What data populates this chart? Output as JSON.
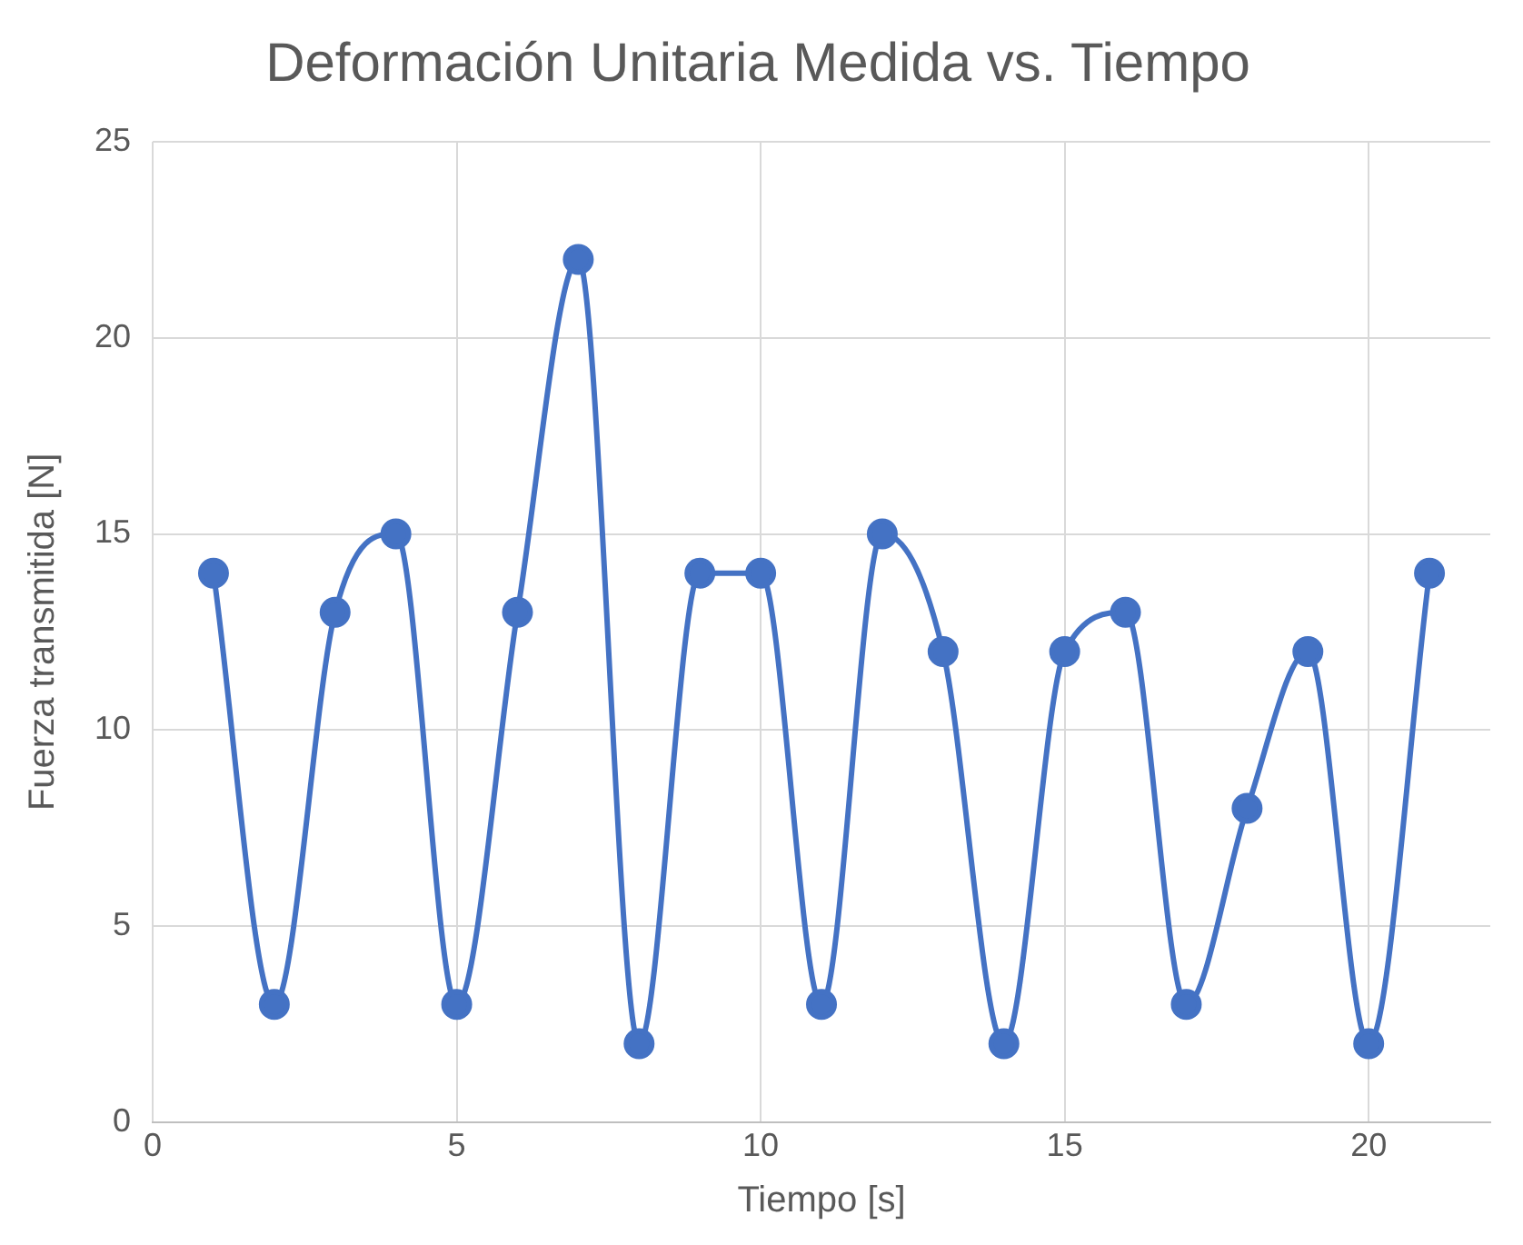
{
  "chart_data": {
    "type": "line",
    "title": "Deformación Unitaria Medida vs. Tiempo",
    "xlabel": "Tiempo [s]",
    "ylabel": "Fuerza transmitida [N]",
    "x": [
      1,
      2,
      3,
      4,
      5,
      6,
      7,
      8,
      9,
      10,
      11,
      12,
      13,
      14,
      15,
      16,
      17,
      18,
      19,
      20,
      21
    ],
    "series": [
      {
        "color": "#4472c4",
        "values": [
          14,
          3,
          13,
          15,
          3,
          13,
          22,
          2,
          14,
          14,
          3,
          15,
          12,
          2,
          12,
          13,
          3,
          8,
          12,
          2,
          14
        ]
      }
    ],
    "xlim": [
      0,
      22
    ],
    "xticks": [
      0,
      5,
      10,
      15,
      20
    ],
    "ylim": [
      0,
      25
    ],
    "yticks": [
      0,
      5,
      10,
      15,
      20,
      25
    ],
    "grid": true,
    "legend": false,
    "marker": "circle",
    "line_style": "solid"
  }
}
